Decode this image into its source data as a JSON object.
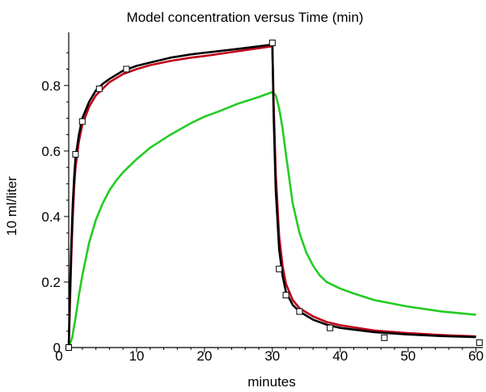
{
  "chart_data": {
    "type": "line",
    "title": "Model concentration versus Time (min)",
    "xlabel": "minutes",
    "ylabel": "10 ml/liter",
    "xlim": [
      0,
      61
    ],
    "ylim": [
      0,
      0.95
    ],
    "xticks": [
      0,
      10,
      20,
      30,
      40,
      50,
      60
    ],
    "yticks": [
      0,
      0.2,
      0.4,
      0.6,
      0.8
    ],
    "xtick_labels": [
      "0",
      "10",
      "20",
      "30",
      "40",
      "50",
      "60"
    ],
    "ytick_labels": [
      "0",
      "0.2",
      "0.4",
      "0.6",
      "0.8"
    ],
    "grid": false,
    "legend": false,
    "series": [
      {
        "type": "scatter",
        "marker": "square",
        "color": "#000000",
        "points": [
          [
            0,
            0
          ],
          [
            1,
            0.59
          ],
          [
            2,
            0.69
          ],
          [
            4.5,
            0.79
          ],
          [
            8.5,
            0.85
          ],
          [
            30,
            0.93
          ],
          [
            31,
            0.24
          ],
          [
            32,
            0.16
          ],
          [
            34,
            0.11
          ],
          [
            38.5,
            0.06
          ],
          [
            46.5,
            0.03
          ],
          [
            60.5,
            0.015
          ]
        ]
      },
      {
        "type": "line",
        "color": "#000000",
        "points": [
          [
            0.0,
            0.0
          ],
          [
            0.2,
            0.18
          ],
          [
            0.4,
            0.33
          ],
          [
            0.6,
            0.44
          ],
          [
            0.8,
            0.52
          ],
          [
            1.0,
            0.58
          ],
          [
            1.5,
            0.65
          ],
          [
            2.0,
            0.7
          ],
          [
            3.0,
            0.75
          ],
          [
            4.0,
            0.785
          ],
          [
            5.0,
            0.805
          ],
          [
            6.0,
            0.82
          ],
          [
            8.0,
            0.845
          ],
          [
            10.0,
            0.86
          ],
          [
            12.0,
            0.87
          ],
          [
            15.0,
            0.885
          ],
          [
            18.0,
            0.895
          ],
          [
            20.0,
            0.9
          ],
          [
            25.0,
            0.912
          ],
          [
            30.0,
            0.925
          ],
          [
            30.2,
            0.7
          ],
          [
            30.5,
            0.48
          ],
          [
            31.0,
            0.3
          ],
          [
            31.5,
            0.22
          ],
          [
            32.0,
            0.17
          ],
          [
            33.0,
            0.13
          ],
          [
            34.0,
            0.11
          ],
          [
            36.0,
            0.085
          ],
          [
            38.0,
            0.07
          ],
          [
            40.0,
            0.06
          ],
          [
            45.0,
            0.047
          ],
          [
            50.0,
            0.04
          ],
          [
            55.0,
            0.035
          ],
          [
            60.0,
            0.032
          ]
        ]
      },
      {
        "type": "line",
        "color": "#c0001a",
        "points": [
          [
            0.0,
            0.0
          ],
          [
            0.2,
            0.15
          ],
          [
            0.4,
            0.29
          ],
          [
            0.6,
            0.4
          ],
          [
            0.8,
            0.49
          ],
          [
            1.0,
            0.55
          ],
          [
            1.5,
            0.63
          ],
          [
            2.0,
            0.68
          ],
          [
            3.0,
            0.735
          ],
          [
            4.0,
            0.77
          ],
          [
            5.0,
            0.79
          ],
          [
            6.0,
            0.81
          ],
          [
            8.0,
            0.835
          ],
          [
            10.0,
            0.85
          ],
          [
            12.0,
            0.862
          ],
          [
            15.0,
            0.875
          ],
          [
            18.0,
            0.885
          ],
          [
            20.0,
            0.89
          ],
          [
            25.0,
            0.905
          ],
          [
            30.0,
            0.92
          ],
          [
            30.2,
            0.74
          ],
          [
            30.5,
            0.53
          ],
          [
            31.0,
            0.34
          ],
          [
            31.5,
            0.25
          ],
          [
            32.0,
            0.195
          ],
          [
            33.0,
            0.145
          ],
          [
            34.0,
            0.12
          ],
          [
            36.0,
            0.095
          ],
          [
            38.0,
            0.078
          ],
          [
            40.0,
            0.068
          ],
          [
            45.0,
            0.052
          ],
          [
            50.0,
            0.044
          ],
          [
            55.0,
            0.038
          ],
          [
            60.0,
            0.034
          ]
        ]
      },
      {
        "type": "line",
        "color": "#22cc22",
        "points": [
          [
            0.0,
            0.0
          ],
          [
            0.5,
            0.03
          ],
          [
            1.0,
            0.09
          ],
          [
            1.5,
            0.16
          ],
          [
            2.0,
            0.22
          ],
          [
            3.0,
            0.32
          ],
          [
            4.0,
            0.39
          ],
          [
            5.0,
            0.44
          ],
          [
            6.0,
            0.48
          ],
          [
            7.0,
            0.51
          ],
          [
            8.0,
            0.535
          ],
          [
            10.0,
            0.575
          ],
          [
            12.0,
            0.61
          ],
          [
            15.0,
            0.65
          ],
          [
            18.0,
            0.685
          ],
          [
            20.0,
            0.705
          ],
          [
            22.0,
            0.72
          ],
          [
            25.0,
            0.745
          ],
          [
            28.0,
            0.765
          ],
          [
            30.0,
            0.78
          ],
          [
            30.5,
            0.77
          ],
          [
            31.0,
            0.73
          ],
          [
            31.5,
            0.67
          ],
          [
            32.0,
            0.59
          ],
          [
            33.0,
            0.44
          ],
          [
            34.0,
            0.35
          ],
          [
            35.0,
            0.29
          ],
          [
            36.0,
            0.25
          ],
          [
            37.0,
            0.22
          ],
          [
            38.0,
            0.2
          ],
          [
            40.0,
            0.18
          ],
          [
            42.0,
            0.165
          ],
          [
            45.0,
            0.145
          ],
          [
            50.0,
            0.125
          ],
          [
            55.0,
            0.11
          ],
          [
            60.0,
            0.1
          ]
        ]
      }
    ]
  }
}
